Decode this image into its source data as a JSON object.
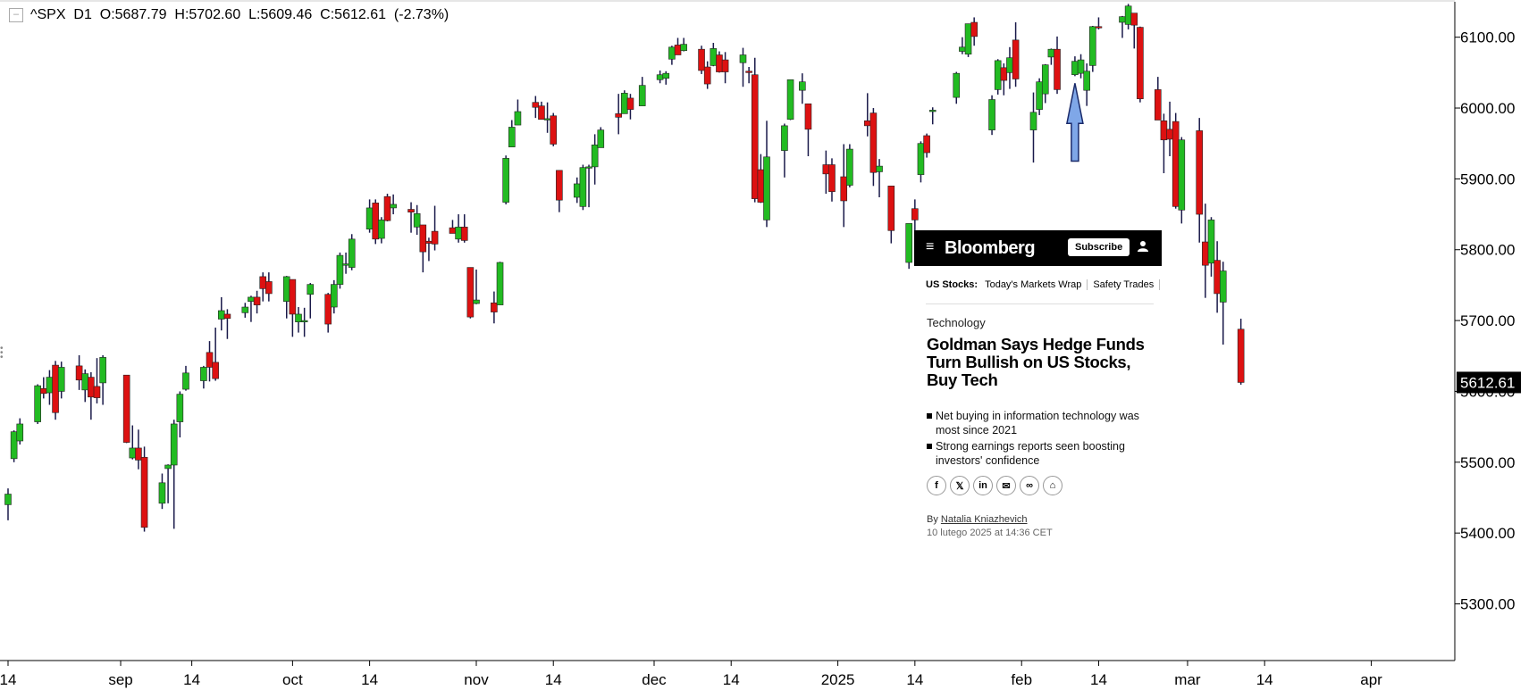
{
  "header": {
    "symbol": "^SPX",
    "timeframe": "D1",
    "ohlc_text": "O:5687.79  H:5702.60  L:5609.46  C:5612.61  (-2.73%)"
  },
  "colors": {
    "up": "#22bb22",
    "down": "#dd1111",
    "wick": "#1a1a4a",
    "axis": "#000000",
    "arrow": "#7fa7e8"
  },
  "card": {
    "brand": "Bloomberg",
    "subscribe": "Subscribe",
    "nav_label": "US Stocks:",
    "nav_items": [
      "Today's Markets Wrap",
      "Safety Trades"
    ],
    "category": "Technology",
    "headline": "Goldman Says Hedge Funds Turn Bullish on US Stocks, Buy Tech",
    "bullets": [
      "Net buying in information technology was most since 2021",
      "Strong earnings reports seen boosting investors' confidence"
    ],
    "share_icons": [
      "facebook-icon",
      "x-icon",
      "linkedin-icon",
      "email-icon",
      "link-icon",
      "gift-icon"
    ],
    "byline_prefix": "By",
    "author": "Natalia Kniazhevich",
    "date": "10 lutego 2025 at 14:36 CET"
  },
  "chart_data": {
    "type": "candlestick",
    "ylim": [
      5220,
      6150
    ],
    "y_ticks": [
      6100,
      6000,
      5900,
      5800,
      5700,
      5600,
      5500,
      5400,
      5300
    ],
    "y_tick_labels": [
      "6100.00",
      "6000.00",
      "5900.00",
      "5800.00",
      "5700.00",
      "5600.00",
      "5500.00",
      "5400.00",
      "5300.00"
    ],
    "last_price_label": "5612.61",
    "last_price": 5612.61,
    "x_ticks": [
      {
        "label": "14",
        "date": "2024-08-14"
      },
      {
        "label": "sep",
        "date": "2024-09-02"
      },
      {
        "label": "14",
        "date": "2024-09-14"
      },
      {
        "label": "oct",
        "date": "2024-10-01"
      },
      {
        "label": "14",
        "date": "2024-10-14"
      },
      {
        "label": "nov",
        "date": "2024-11-01"
      },
      {
        "label": "14",
        "date": "2024-11-14"
      },
      {
        "label": "dec",
        "date": "2024-12-01"
      },
      {
        "label": "14",
        "date": "2024-12-14"
      },
      {
        "label": "2025",
        "date": "2025-01-01"
      },
      {
        "label": "14",
        "date": "2025-01-14"
      },
      {
        "label": "feb",
        "date": "2025-02-01"
      },
      {
        "label": "14",
        "date": "2025-02-14"
      },
      {
        "label": "mar",
        "date": "2025-03-01"
      },
      {
        "label": "14",
        "date": "2025-03-14"
      },
      {
        "label": "apr",
        "date": "2025-04-01"
      }
    ],
    "x_start_date": "2024-08-14",
    "x_end_date": "2025-04-08",
    "annotation_arrow": {
      "date": "2025-02-10",
      "price_tip": 6035,
      "price_base": 5925
    },
    "candles": [
      {
        "d": "2024-08-14",
        "o": 5440,
        "h": 5463,
        "l": 5418,
        "c": 5455
      },
      {
        "d": "2024-08-15",
        "o": 5505,
        "h": 5545,
        "l": 5500,
        "c": 5543
      },
      {
        "d": "2024-08-16",
        "o": 5530,
        "h": 5562,
        "l": 5525,
        "c": 5554
      },
      {
        "d": "2024-08-19",
        "o": 5557,
        "h": 5610,
        "l": 5554,
        "c": 5608
      },
      {
        "d": "2024-08-20",
        "o": 5604,
        "h": 5620,
        "l": 5590,
        "c": 5597
      },
      {
        "d": "2024-08-21",
        "o": 5598,
        "h": 5630,
        "l": 5581,
        "c": 5620
      },
      {
        "d": "2024-08-22",
        "o": 5637,
        "h": 5643,
        "l": 5560,
        "c": 5570
      },
      {
        "d": "2024-08-23",
        "o": 5600,
        "h": 5642,
        "l": 5590,
        "c": 5634
      },
      {
        "d": "2024-08-26",
        "o": 5636,
        "h": 5651,
        "l": 5602,
        "c": 5616
      },
      {
        "d": "2024-08-27",
        "o": 5602,
        "h": 5631,
        "l": 5585,
        "c": 5625
      },
      {
        "d": "2024-08-28",
        "o": 5620,
        "h": 5627,
        "l": 5560,
        "c": 5592
      },
      {
        "d": "2024-08-29",
        "o": 5607,
        "h": 5647,
        "l": 5583,
        "c": 5591
      },
      {
        "d": "2024-08-30",
        "o": 5612,
        "h": 5651,
        "l": 5581,
        "c": 5648
      },
      {
        "d": "2024-09-03",
        "o": 5623,
        "h": 5623,
        "l": 5527,
        "c": 5528
      },
      {
        "d": "2024-09-04",
        "o": 5506,
        "h": 5552,
        "l": 5504,
        "c": 5520
      },
      {
        "d": "2024-09-05",
        "o": 5520,
        "h": 5546,
        "l": 5490,
        "c": 5503
      },
      {
        "d": "2024-09-06",
        "o": 5507,
        "h": 5522,
        "l": 5402,
        "c": 5408
      },
      {
        "d": "2024-09-09",
        "o": 5442,
        "h": 5484,
        "l": 5434,
        "c": 5471
      },
      {
        "d": "2024-09-10",
        "o": 5491,
        "h": 5497,
        "l": 5442,
        "c": 5496
      },
      {
        "d": "2024-09-11",
        "o": 5496,
        "h": 5560,
        "l": 5406,
        "c": 5554
      },
      {
        "d": "2024-09-12",
        "o": 5557,
        "h": 5600,
        "l": 5535,
        "c": 5596
      },
      {
        "d": "2024-09-13",
        "o": 5603,
        "h": 5636,
        "l": 5601,
        "c": 5626
      },
      {
        "d": "2024-09-16",
        "o": 5615,
        "h": 5636,
        "l": 5604,
        "c": 5634
      },
      {
        "d": "2024-09-17",
        "o": 5655,
        "h": 5671,
        "l": 5614,
        "c": 5634
      },
      {
        "d": "2024-09-18",
        "o": 5641,
        "h": 5690,
        "l": 5615,
        "c": 5618
      },
      {
        "d": "2024-09-19",
        "o": 5702,
        "h": 5733,
        "l": 5686,
        "c": 5714
      },
      {
        "d": "2024-09-20",
        "o": 5709,
        "h": 5716,
        "l": 5674,
        "c": 5703
      },
      {
        "d": "2024-09-23",
        "o": 5711,
        "h": 5725,
        "l": 5704,
        "c": 5719
      },
      {
        "d": "2024-09-24",
        "o": 5727,
        "h": 5735,
        "l": 5698,
        "c": 5733
      },
      {
        "d": "2024-09-25",
        "o": 5733,
        "h": 5742,
        "l": 5710,
        "c": 5722
      },
      {
        "d": "2024-09-26",
        "o": 5762,
        "h": 5768,
        "l": 5727,
        "c": 5745
      },
      {
        "d": "2024-09-27",
        "o": 5755,
        "h": 5768,
        "l": 5727,
        "c": 5738
      },
      {
        "d": "2024-09-30",
        "o": 5727,
        "h": 5763,
        "l": 5703,
        "c": 5762
      },
      {
        "d": "2024-10-01",
        "o": 5758,
        "h": 5758,
        "l": 5677,
        "c": 5709
      },
      {
        "d": "2024-10-02",
        "o": 5698,
        "h": 5719,
        "l": 5683,
        "c": 5709
      },
      {
        "d": "2024-10-03",
        "o": 5698,
        "h": 5718,
        "l": 5677,
        "c": 5700
      },
      {
        "d": "2024-10-04",
        "o": 5737,
        "h": 5753,
        "l": 5703,
        "c": 5751
      },
      {
        "d": "2024-10-07",
        "o": 5737,
        "h": 5739,
        "l": 5683,
        "c": 5695
      },
      {
        "d": "2024-10-08",
        "o": 5719,
        "h": 5757,
        "l": 5710,
        "c": 5751
      },
      {
        "d": "2024-10-09",
        "o": 5751,
        "h": 5796,
        "l": 5745,
        "c": 5792
      },
      {
        "d": "2024-10-10",
        "o": 5778,
        "h": 5796,
        "l": 5766,
        "c": 5780
      },
      {
        "d": "2024-10-11",
        "o": 5775,
        "h": 5822,
        "l": 5771,
        "c": 5815
      },
      {
        "d": "2024-10-14",
        "o": 5829,
        "h": 5871,
        "l": 5824,
        "c": 5859
      },
      {
        "d": "2024-10-15",
        "o": 5866,
        "h": 5871,
        "l": 5808,
        "c": 5815
      },
      {
        "d": "2024-10-16",
        "o": 5816,
        "h": 5846,
        "l": 5809,
        "c": 5842
      },
      {
        "d": "2024-10-17",
        "o": 5875,
        "h": 5879,
        "l": 5840,
        "c": 5841
      },
      {
        "d": "2024-10-18",
        "o": 5859,
        "h": 5878,
        "l": 5850,
        "c": 5864
      },
      {
        "d": "2024-10-21",
        "o": 5857,
        "h": 5867,
        "l": 5824,
        "c": 5853
      },
      {
        "d": "2024-10-22",
        "o": 5832,
        "h": 5863,
        "l": 5821,
        "c": 5851
      },
      {
        "d": "2024-10-23",
        "o": 5835,
        "h": 5835,
        "l": 5768,
        "c": 5797
      },
      {
        "d": "2024-10-24",
        "o": 5812,
        "h": 5817,
        "l": 5784,
        "c": 5809
      },
      {
        "d": "2024-10-25",
        "o": 5826,
        "h": 5862,
        "l": 5799,
        "c": 5808
      },
      {
        "d": "2024-10-28",
        "o": 5831,
        "h": 5842,
        "l": 5823,
        "c": 5823
      },
      {
        "d": "2024-10-29",
        "o": 5815,
        "h": 5850,
        "l": 5810,
        "c": 5832
      },
      {
        "d": "2024-10-30",
        "o": 5832,
        "h": 5850,
        "l": 5810,
        "c": 5813
      },
      {
        "d": "2024-10-31",
        "o": 5775,
        "h": 5775,
        "l": 5703,
        "c": 5705
      },
      {
        "d": "2024-11-01",
        "o": 5724,
        "h": 5772,
        "l": 5723,
        "c": 5729
      },
      {
        "d": "2024-11-04",
        "o": 5725,
        "h": 5741,
        "l": 5696,
        "c": 5712
      },
      {
        "d": "2024-11-05",
        "o": 5722,
        "h": 5783,
        "l": 5722,
        "c": 5782
      },
      {
        "d": "2024-11-06",
        "o": 5867,
        "h": 5933,
        "l": 5864,
        "c": 5929
      },
      {
        "d": "2024-11-07",
        "o": 5945,
        "h": 5983,
        "l": 5945,
        "c": 5973
      },
      {
        "d": "2024-11-08",
        "o": 5976,
        "h": 6012,
        "l": 5976,
        "c": 5995
      },
      {
        "d": "2024-11-11",
        "o": 6008,
        "h": 6017,
        "l": 5986,
        "c": 6001
      },
      {
        "d": "2024-11-12",
        "o": 6003,
        "h": 6009,
        "l": 5984,
        "c": 5984
      },
      {
        "d": "2024-11-13",
        "o": 5985,
        "h": 6008,
        "l": 5965,
        "c": 5985
      },
      {
        "d": "2024-11-14",
        "o": 5989,
        "h": 5993,
        "l": 5946,
        "c": 5949
      },
      {
        "d": "2024-11-15",
        "o": 5912,
        "h": 5912,
        "l": 5853,
        "c": 5870
      },
      {
        "d": "2024-11-18",
        "o": 5874,
        "h": 5902,
        "l": 5866,
        "c": 5893
      },
      {
        "d": "2024-11-19",
        "o": 5861,
        "h": 5920,
        "l": 5856,
        "c": 5916
      },
      {
        "d": "2024-11-20",
        "o": 5917,
        "h": 5920,
        "l": 5860,
        "c": 5917
      },
      {
        "d": "2024-11-21",
        "o": 5917,
        "h": 5963,
        "l": 5892,
        "c": 5948
      },
      {
        "d": "2024-11-22",
        "o": 5944,
        "h": 5973,
        "l": 5944,
        "c": 5969
      },
      {
        "d": "2024-11-25",
        "o": 5992,
        "h": 6020,
        "l": 5963,
        "c": 5987
      },
      {
        "d": "2024-11-26",
        "o": 5992,
        "h": 6025,
        "l": 5993,
        "c": 6021
      },
      {
        "d": "2024-11-27",
        "o": 6014,
        "h": 6020,
        "l": 5984,
        "c": 5998
      },
      {
        "d": "2024-11-29",
        "o": 6003,
        "h": 6044,
        "l": 6003,
        "c": 6032
      },
      {
        "d": "2024-12-02",
        "o": 6040,
        "h": 6053,
        "l": 6035,
        "c": 6047
      },
      {
        "d": "2024-12-03",
        "o": 6042,
        "h": 6052,
        "l": 6033,
        "c": 6049
      },
      {
        "d": "2024-12-04",
        "o": 6069,
        "h": 6088,
        "l": 6061,
        "c": 6086
      },
      {
        "d": "2024-12-05",
        "o": 6089,
        "h": 6099,
        "l": 6079,
        "c": 6075
      },
      {
        "d": "2024-12-06",
        "o": 6081,
        "h": 6099,
        "l": 6080,
        "c": 6090
      },
      {
        "d": "2024-12-09",
        "o": 6083,
        "h": 6088,
        "l": 6048,
        "c": 6053
      },
      {
        "d": "2024-12-10",
        "o": 6058,
        "h": 6066,
        "l": 6027,
        "c": 6034
      },
      {
        "d": "2024-12-11",
        "o": 6060,
        "h": 6092,
        "l": 6059,
        "c": 6084
      },
      {
        "d": "2024-12-12",
        "o": 6075,
        "h": 6080,
        "l": 6050,
        "c": 6051
      },
      {
        "d": "2024-12-13",
        "o": 6068,
        "h": 6079,
        "l": 6035,
        "c": 6051
      },
      {
        "d": "2024-12-16",
        "o": 6064,
        "h": 6085,
        "l": 6030,
        "c": 6075
      },
      {
        "d": "2024-12-17",
        "o": 6052,
        "h": 6058,
        "l": 6035,
        "c": 6050
      },
      {
        "d": "2024-12-18",
        "o": 6047,
        "h": 6071,
        "l": 5867,
        "c": 5872
      },
      {
        "d": "2024-12-19",
        "o": 5913,
        "h": 5935,
        "l": 5866,
        "c": 5867
      },
      {
        "d": "2024-12-20",
        "o": 5842,
        "h": 5982,
        "l": 5832,
        "c": 5931
      },
      {
        "d": "2024-12-23",
        "o": 5940,
        "h": 5978,
        "l": 5902,
        "c": 5975
      },
      {
        "d": "2024-12-24",
        "o": 5984,
        "h": 6040,
        "l": 5983,
        "c": 6040
      },
      {
        "d": "2024-12-26",
        "o": 6025,
        "h": 6049,
        "l": 6006,
        "c": 6037
      },
      {
        "d": "2024-12-27",
        "o": 6006,
        "h": 6006,
        "l": 5932,
        "c": 5970
      },
      {
        "d": "2024-12-30",
        "o": 5920,
        "h": 5940,
        "l": 5879,
        "c": 5907
      },
      {
        "d": "2024-12-31",
        "o": 5920,
        "h": 5929,
        "l": 5868,
        "c": 5882
      },
      {
        "d": "2025-01-02",
        "o": 5903,
        "h": 5949,
        "l": 5832,
        "c": 5869
      },
      {
        "d": "2025-01-03",
        "o": 5891,
        "h": 5949,
        "l": 5888,
        "c": 5942
      },
      {
        "d": "2025-01-06",
        "o": 5982,
        "h": 6021,
        "l": 5960,
        "c": 5975
      },
      {
        "d": "2025-01-07",
        "o": 5993,
        "h": 6000,
        "l": 5890,
        "c": 5909
      },
      {
        "d": "2025-01-08",
        "o": 5910,
        "h": 5928,
        "l": 5874,
        "c": 5918
      },
      {
        "d": "2025-01-10",
        "o": 5890,
        "h": 5890,
        "l": 5809,
        "c": 5827
      },
      {
        "d": "2025-01-13",
        "o": 5782,
        "h": 5835,
        "l": 5773,
        "c": 5837
      },
      {
        "d": "2025-01-14",
        "o": 5858,
        "h": 5871,
        "l": 5808,
        "c": 5842
      },
      {
        "d": "2025-01-15",
        "o": 5906,
        "h": 5953,
        "l": 5895,
        "c": 5950
      },
      {
        "d": "2025-01-16",
        "o": 5961,
        "h": 5964,
        "l": 5930,
        "c": 5937
      },
      {
        "d": "2025-01-17",
        "o": 5995,
        "h": 6001,
        "l": 5977,
        "c": 5997
      },
      {
        "d": "2025-01-21",
        "o": 6015,
        "h": 6051,
        "l": 6006,
        "c": 6049
      },
      {
        "d": "2025-01-22",
        "o": 6080,
        "h": 6100,
        "l": 6076,
        "c": 6086
      },
      {
        "d": "2025-01-23",
        "o": 6076,
        "h": 6119,
        "l": 6072,
        "c": 6119
      },
      {
        "d": "2025-01-24",
        "o": 6121,
        "h": 6128,
        "l": 6088,
        "c": 6101
      },
      {
        "d": "2025-01-27",
        "o": 5969,
        "h": 6018,
        "l": 5962,
        "c": 6012
      },
      {
        "d": "2025-01-28",
        "o": 6026,
        "h": 6069,
        "l": 6019,
        "c": 6067
      },
      {
        "d": "2025-01-29",
        "o": 6057,
        "h": 6063,
        "l": 6018,
        "c": 6039
      },
      {
        "d": "2025-01-30",
        "o": 6050,
        "h": 6086,
        "l": 6027,
        "c": 6071
      },
      {
        "d": "2025-01-31",
        "o": 6096,
        "h": 6121,
        "l": 6030,
        "c": 6041
      },
      {
        "d": "2025-02-03",
        "o": 5969,
        "h": 6022,
        "l": 5923,
        "c": 5994
      },
      {
        "d": "2025-02-04",
        "o": 5998,
        "h": 6042,
        "l": 5990,
        "c": 6037
      },
      {
        "d": "2025-02-05",
        "o": 6020,
        "h": 6062,
        "l": 6007,
        "c": 6061
      },
      {
        "d": "2025-02-06",
        "o": 6072,
        "h": 6084,
        "l": 6061,
        "c": 6083
      },
      {
        "d": "2025-02-07",
        "o": 6083,
        "h": 6101,
        "l": 6020,
        "c": 6026
      },
      {
        "d": "2025-02-10",
        "o": 6047,
        "h": 6073,
        "l": 6045,
        "c": 6066
      },
      {
        "d": "2025-02-11",
        "o": 6049,
        "h": 6076,
        "l": 6042,
        "c": 6068
      },
      {
        "d": "2025-02-12",
        "o": 6025,
        "h": 6063,
        "l": 6003,
        "c": 6052
      },
      {
        "d": "2025-02-13",
        "o": 6060,
        "h": 6116,
        "l": 6051,
        "c": 6115
      },
      {
        "d": "2025-02-14",
        "o": 6115,
        "h": 6128,
        "l": 6111,
        "c": 6114
      },
      {
        "d": "2025-02-18",
        "o": 6121,
        "h": 6130,
        "l": 6099,
        "c": 6129
      },
      {
        "d": "2025-02-19",
        "o": 6118,
        "h": 6147,
        "l": 6111,
        "c": 6144
      },
      {
        "d": "2025-02-20",
        "o": 6134,
        "h": 6134,
        "l": 6084,
        "c": 6117
      },
      {
        "d": "2025-02-21",
        "o": 6114,
        "h": 6115,
        "l": 6008,
        "c": 6013
      },
      {
        "d": "2025-02-24",
        "o": 6026,
        "h": 6044,
        "l": 5986,
        "c": 5983
      },
      {
        "d": "2025-02-25",
        "o": 5982,
        "h": 5992,
        "l": 5908,
        "c": 5955
      },
      {
        "d": "2025-02-26",
        "o": 5970,
        "h": 6009,
        "l": 5932,
        "c": 5956
      },
      {
        "d": "2025-02-27",
        "o": 5981,
        "h": 5993,
        "l": 5858,
        "c": 5861
      },
      {
        "d": "2025-02-28",
        "o": 5856,
        "h": 5959,
        "l": 5837,
        "c": 5955
      },
      {
        "d": "2025-03-03",
        "o": 5968,
        "h": 5986,
        "l": 5810,
        "c": 5850
      },
      {
        "d": "2025-03-04",
        "o": 5811,
        "h": 5865,
        "l": 5732,
        "c": 5778
      },
      {
        "d": "2025-03-05",
        "o": 5781,
        "h": 5846,
        "l": 5762,
        "c": 5842
      },
      {
        "d": "2025-03-06",
        "o": 5785,
        "h": 5812,
        "l": 5711,
        "c": 5738
      },
      {
        "d": "2025-03-07",
        "o": 5726,
        "h": 5783,
        "l": 5666,
        "c": 5770
      },
      {
        "d": "2025-03-10",
        "o": 5687.79,
        "h": 5702.6,
        "l": 5609.46,
        "c": 5612.61
      }
    ]
  }
}
